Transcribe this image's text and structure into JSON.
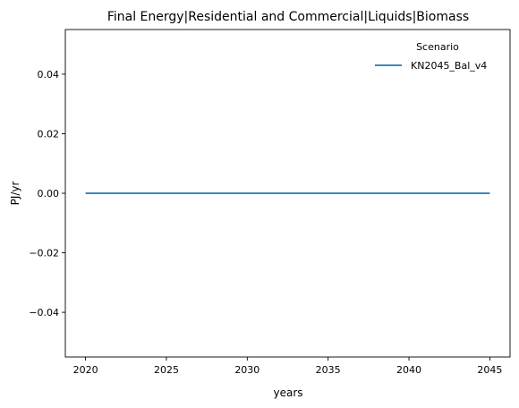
{
  "chart_data": {
    "type": "line",
    "title": "Final Energy|Residential and Commercial|Liquids|Biomass",
    "xlabel": "years",
    "ylabel": "PJ/yr",
    "xlim": [
      2018.75,
      2046.25
    ],
    "ylim": [
      -0.055,
      0.055
    ],
    "xticks": [
      2020,
      2025,
      2030,
      2035,
      2040,
      2045
    ],
    "xtick_labels": [
      "2020",
      "2025",
      "2030",
      "2035",
      "2040",
      "2045"
    ],
    "yticks": [
      -0.04,
      -0.02,
      0.0,
      0.02,
      0.04
    ],
    "ytick_labels": [
      "−0.04",
      "−0.02",
      "0.00",
      "0.02",
      "0.04"
    ],
    "grid": false,
    "legend": {
      "title": "Scenario",
      "placement": "top-right"
    },
    "series": [
      {
        "name": "KN2045_Bal_v4",
        "color": "#1f77b4",
        "x": [
          2020,
          2025,
          2030,
          2035,
          2040,
          2045
        ],
        "y": [
          0,
          0,
          0,
          0,
          0,
          0
        ]
      }
    ]
  }
}
